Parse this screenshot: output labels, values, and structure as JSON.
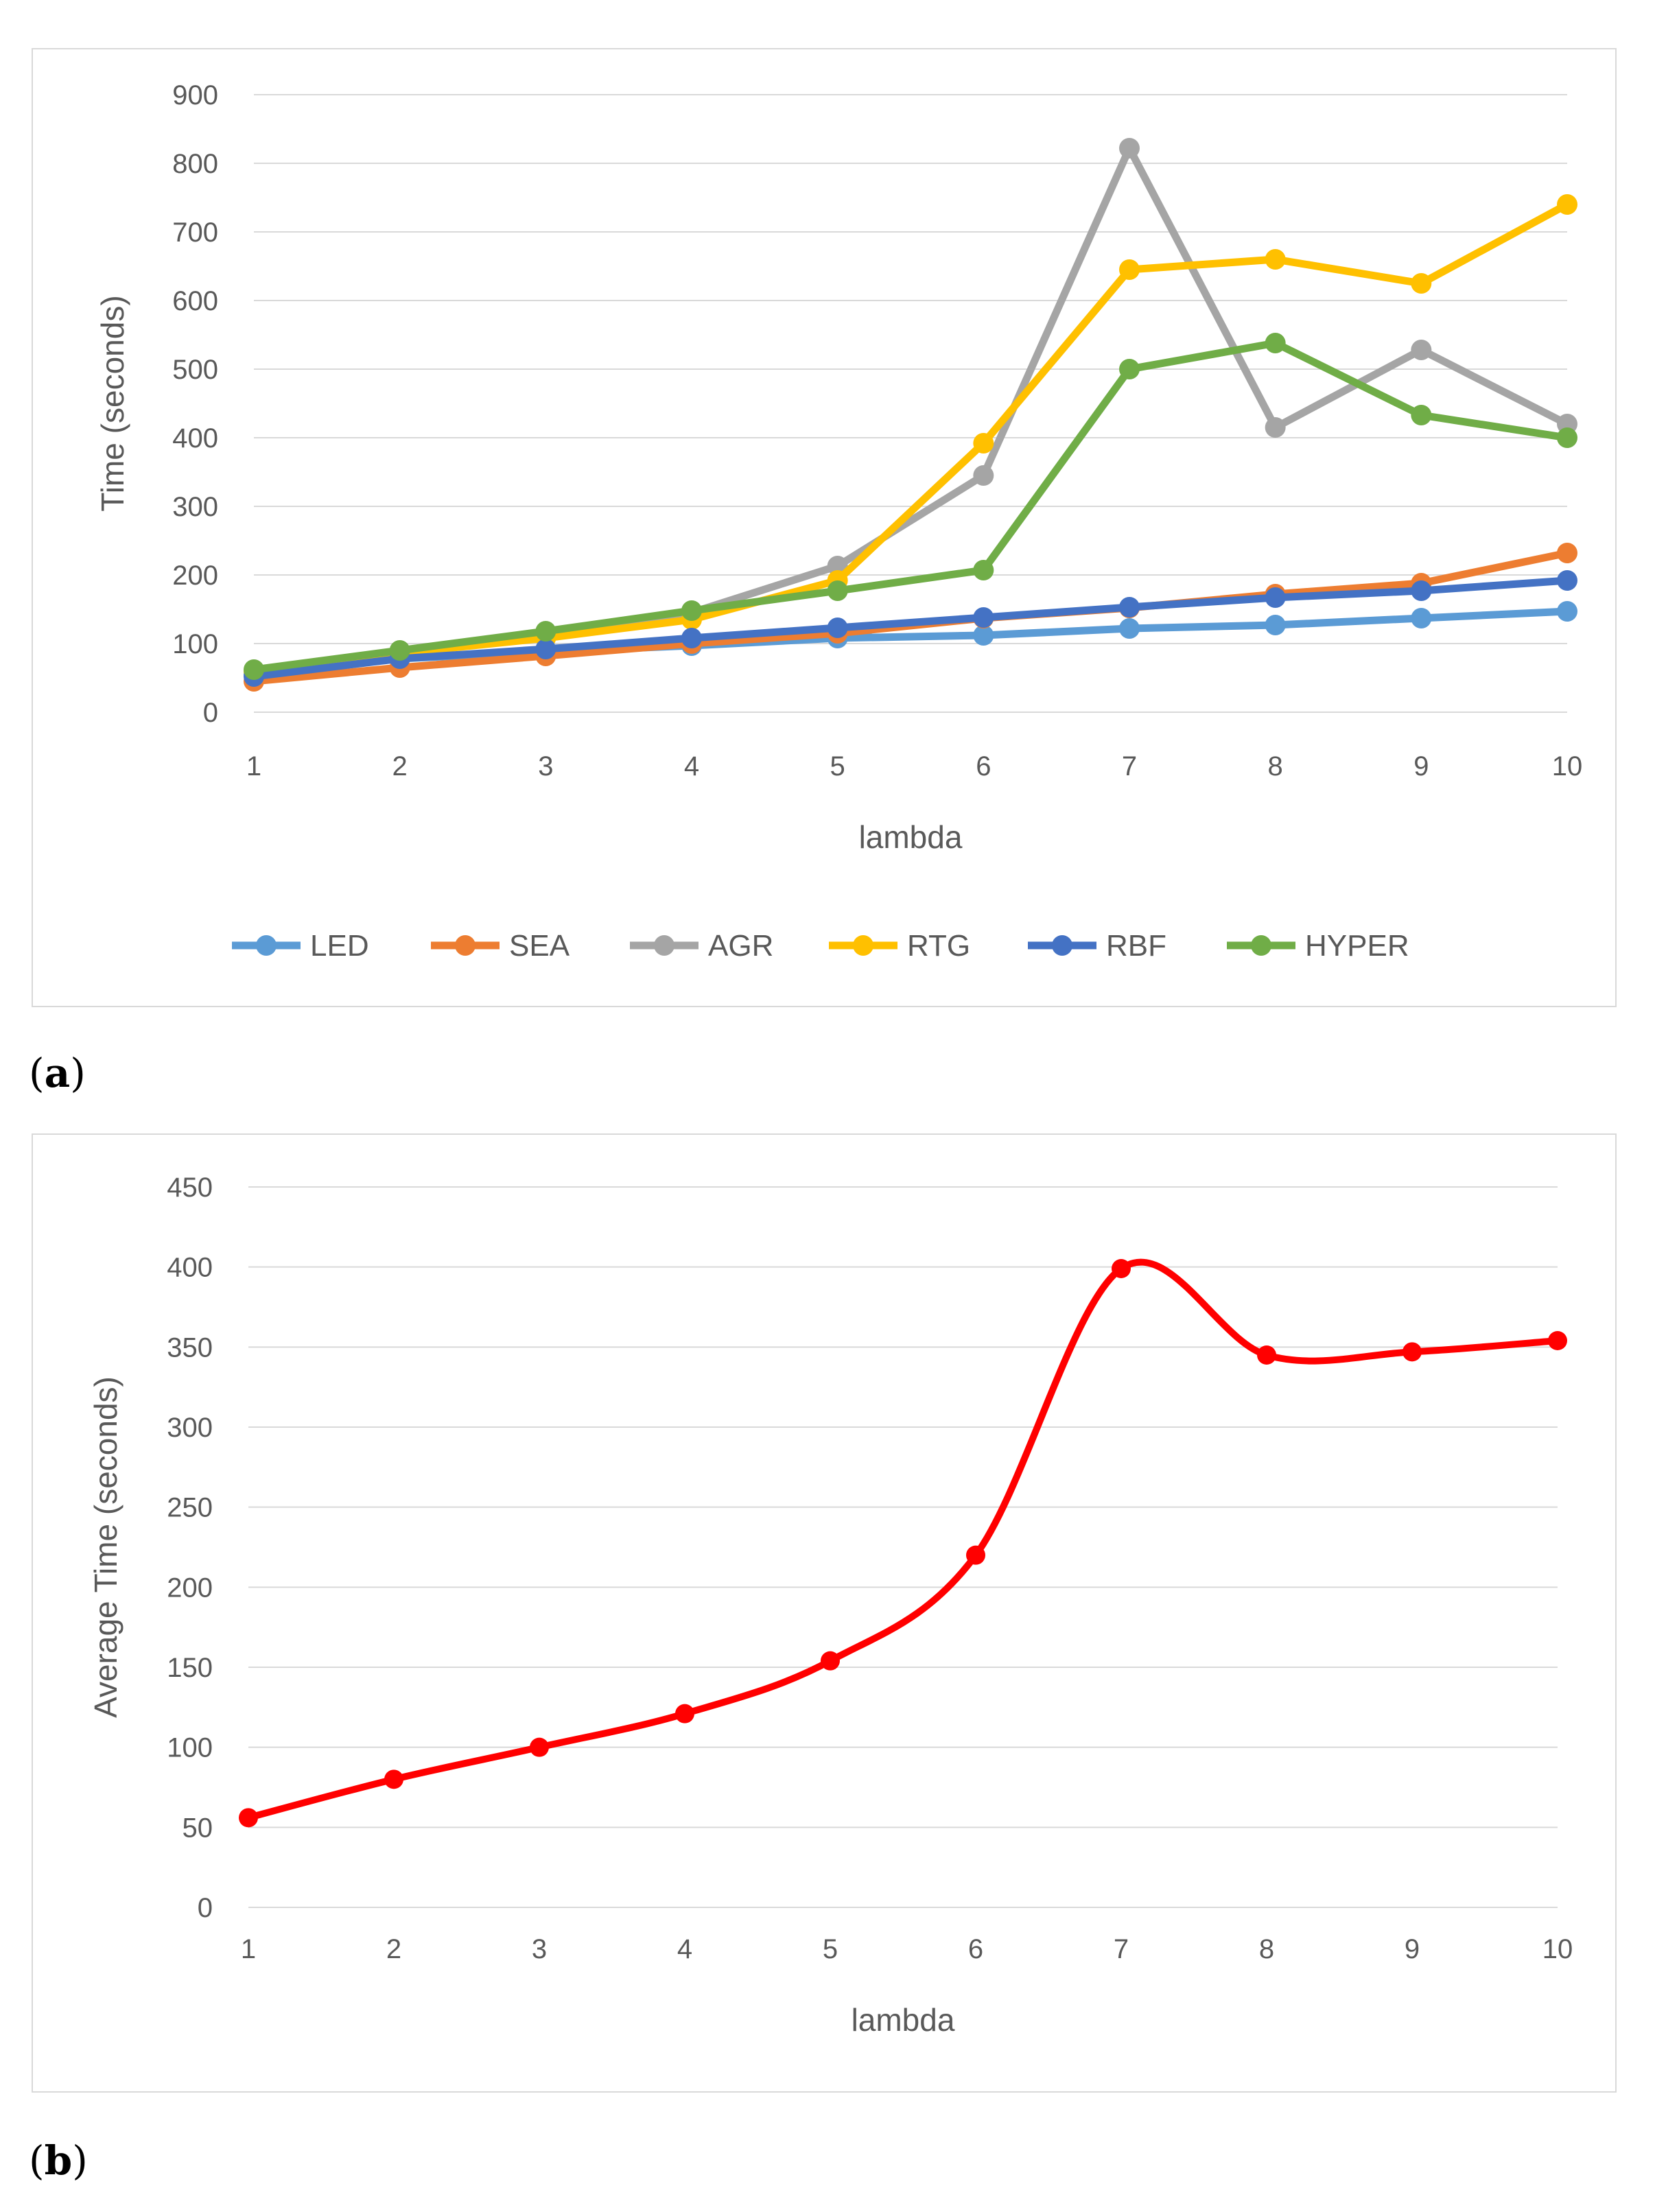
{
  "panel_labels": {
    "a": "a",
    "b": "b"
  },
  "chart_data": [
    {
      "type": "line",
      "title": "",
      "xlabel": "lambda",
      "ylabel": "Time (seconds)",
      "ylim": [
        0,
        900
      ],
      "yticks": [
        0,
        100,
        200,
        300,
        400,
        500,
        600,
        700,
        800,
        900
      ],
      "x": [
        1,
        2,
        3,
        4,
        5,
        6,
        7,
        8,
        9,
        10
      ],
      "grid": true,
      "legend": "bottom",
      "series": [
        {
          "name": "LED",
          "color": "#5b9bd5",
          "values": [
            55,
            78,
            88,
            97,
            108,
            112,
            122,
            127,
            137,
            147
          ]
        },
        {
          "name": "SEA",
          "color": "#ed7d31",
          "values": [
            45,
            65,
            82,
            100,
            115,
            137,
            152,
            172,
            188,
            232
          ]
        },
        {
          "name": "AGR",
          "color": "#a5a5a5",
          "values": [
            60,
            88,
            112,
            145,
            213,
            345,
            822,
            415,
            528,
            420
          ]
        },
        {
          "name": "RTG",
          "color": "#ffc000",
          "values": [
            60,
            86,
            108,
            135,
            192,
            392,
            645,
            660,
            625,
            740
          ]
        },
        {
          "name": "RBF",
          "color": "#4472c4",
          "values": [
            52,
            78,
            92,
            108,
            123,
            138,
            153,
            167,
            177,
            192
          ]
        },
        {
          "name": "HYPER",
          "color": "#70ad47",
          "values": [
            62,
            90,
            118,
            148,
            177,
            207,
            500,
            538,
            433,
            400
          ]
        }
      ]
    },
    {
      "type": "line",
      "title": "",
      "xlabel": "lambda",
      "ylabel": "Average Time (seconds)",
      "ylim": [
        0,
        450
      ],
      "yticks": [
        0,
        50,
        100,
        150,
        200,
        250,
        300,
        350,
        400,
        450
      ],
      "x": [
        1,
        2,
        3,
        4,
        5,
        6,
        7,
        8,
        9,
        10
      ],
      "grid": true,
      "smooth": true,
      "series": [
        {
          "name": "",
          "color": "#ff0000",
          "values": [
            56,
            80,
            100,
            121,
            154,
            220,
            399,
            345,
            347,
            354
          ]
        }
      ]
    }
  ]
}
